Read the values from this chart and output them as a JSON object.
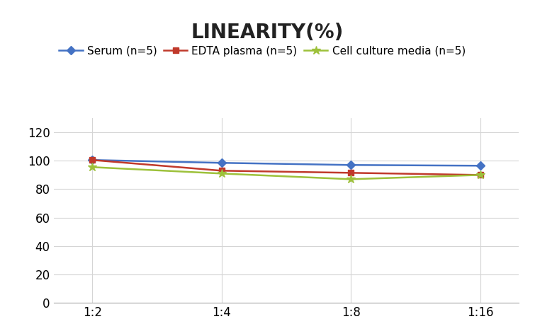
{
  "title": "LINEARITY(%)",
  "x_labels": [
    "1:2",
    "1:4",
    "1:8",
    "1:16"
  ],
  "x_positions": [
    0,
    1,
    2,
    3
  ],
  "series": [
    {
      "name": "Serum (n=5)",
      "values": [
        100.5,
        98.5,
        97.0,
        96.5
      ],
      "color": "#4472C4",
      "marker": "D",
      "markersize": 6
    },
    {
      "name": "EDTA plasma (n=5)",
      "values": [
        100.5,
        93.0,
        91.5,
        90.0
      ],
      "color": "#C0392B",
      "marker": "s",
      "markersize": 6
    },
    {
      "name": "Cell culture media (n=5)",
      "values": [
        95.5,
        91.0,
        87.0,
        90.0
      ],
      "color": "#9DC13B",
      "marker": "*",
      "markersize": 9
    }
  ],
  "ylim": [
    0,
    130
  ],
  "yticks": [
    0,
    20,
    40,
    60,
    80,
    100,
    120
  ],
  "background_color": "#ffffff",
  "grid_color": "#d5d5d5",
  "title_fontsize": 20,
  "legend_fontsize": 11,
  "tick_fontsize": 12
}
